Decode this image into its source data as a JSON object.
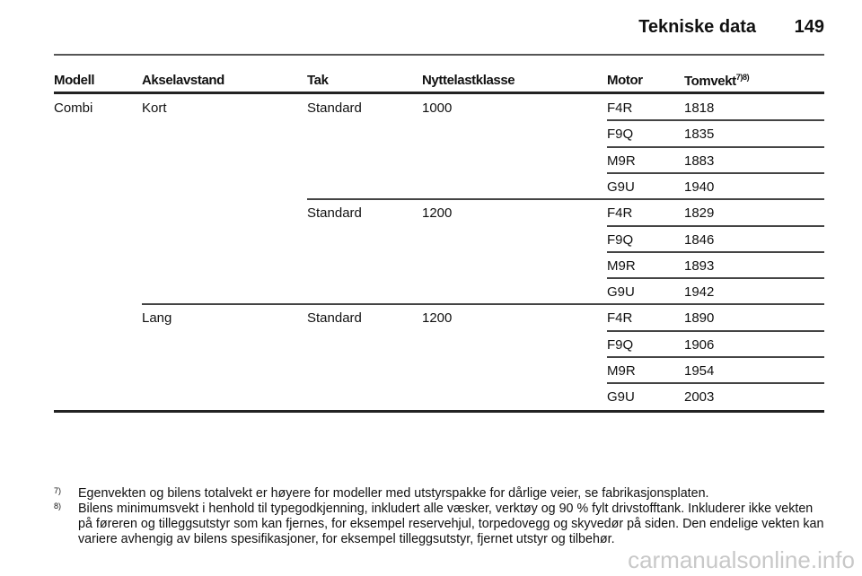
{
  "header": {
    "title": "Tekniske data",
    "page_number": "149"
  },
  "table": {
    "columns": [
      "Modell",
      "Akselavstand",
      "Tak",
      "Nyttelastklasse",
      "Motor",
      "Tomvekt"
    ],
    "tomvekt_footnote_refs": "7)8)",
    "rows": [
      [
        "Combi",
        "Kort",
        "Standard",
        "1000",
        "F4R",
        "1818"
      ],
      [
        "",
        "",
        "",
        "",
        "F9Q",
        "1835"
      ],
      [
        "",
        "",
        "",
        "",
        "M9R",
        "1883"
      ],
      [
        "",
        "",
        "",
        "",
        "G9U",
        "1940"
      ],
      [
        "",
        "",
        "Standard",
        "1200",
        "F4R",
        "1829"
      ],
      [
        "",
        "",
        "",
        "",
        "F9Q",
        "1846"
      ],
      [
        "",
        "",
        "",
        "",
        "M9R",
        "1893"
      ],
      [
        "",
        "",
        "",
        "",
        "G9U",
        "1942"
      ],
      [
        "",
        "Lang",
        "Standard",
        "1200",
        "F4R",
        "1890"
      ],
      [
        "",
        "",
        "",
        "",
        "F9Q",
        "1906"
      ],
      [
        "",
        "",
        "",
        "",
        "M9R",
        "1954"
      ],
      [
        "",
        "",
        "",
        "",
        "G9U",
        "2003"
      ]
    ]
  },
  "footnotes": [
    {
      "mark": "7)",
      "text": "Egenvekten og bilens totalvekt er høyere for modeller med utstyrspakke for dårlige veier, se fabrikasjonsplaten."
    },
    {
      "mark": "8)",
      "text": "Bilens minimumsvekt i henhold til typegodkjenning, inkludert alle væsker, verktøy og 90 % fylt drivstofftank. Inkluderer ikke vekten på føreren og tilleggsutstyr som kan fjernes, for eksempel reservehjul, torpedovegg og skyvedør på siden. Den endelige vekten kan variere avhengig av bilens spesifikasjoner, for eksempel tilleggsutstyr, fjernet utstyr og tilbehør."
    }
  ],
  "watermark": "carmanualsonline.info"
}
